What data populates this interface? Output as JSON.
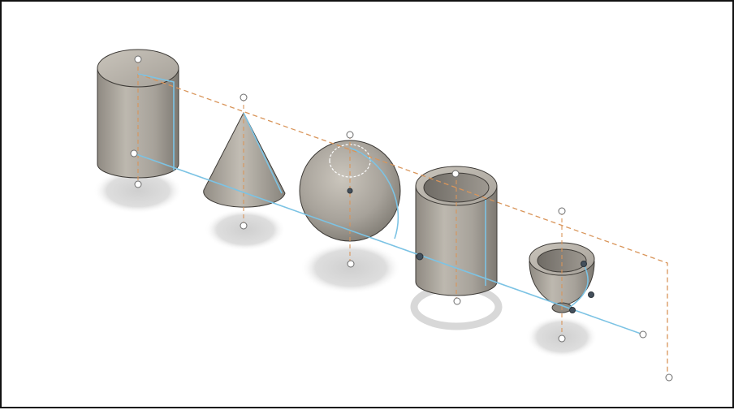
{
  "viewport": {
    "background": "#ffffff",
    "frame_color": "#111111"
  },
  "colors": {
    "sketch_path": "#7cc3e4",
    "construction_path": "#d9955a",
    "solid_light": "#bcb7ae",
    "solid_mid": "#a39e95",
    "solid_dark": "#7f7b74",
    "shadow": "#d3d3d3",
    "handle_fill": "#ffffff",
    "handle_stroke": "#6b6b6b",
    "vertex": "#44505c"
  },
  "objects": [
    {
      "kind": "cylinder",
      "icon": "cylinder-solid"
    },
    {
      "kind": "cone",
      "icon": "cone-solid"
    },
    {
      "kind": "sphere",
      "icon": "sphere-solid"
    },
    {
      "kind": "tube",
      "icon": "pipe-solid"
    },
    {
      "kind": "revolve",
      "icon": "bowl-solid"
    }
  ],
  "annotations": {
    "construction_line_style": "dashed",
    "sketch_line_style": "solid"
  }
}
